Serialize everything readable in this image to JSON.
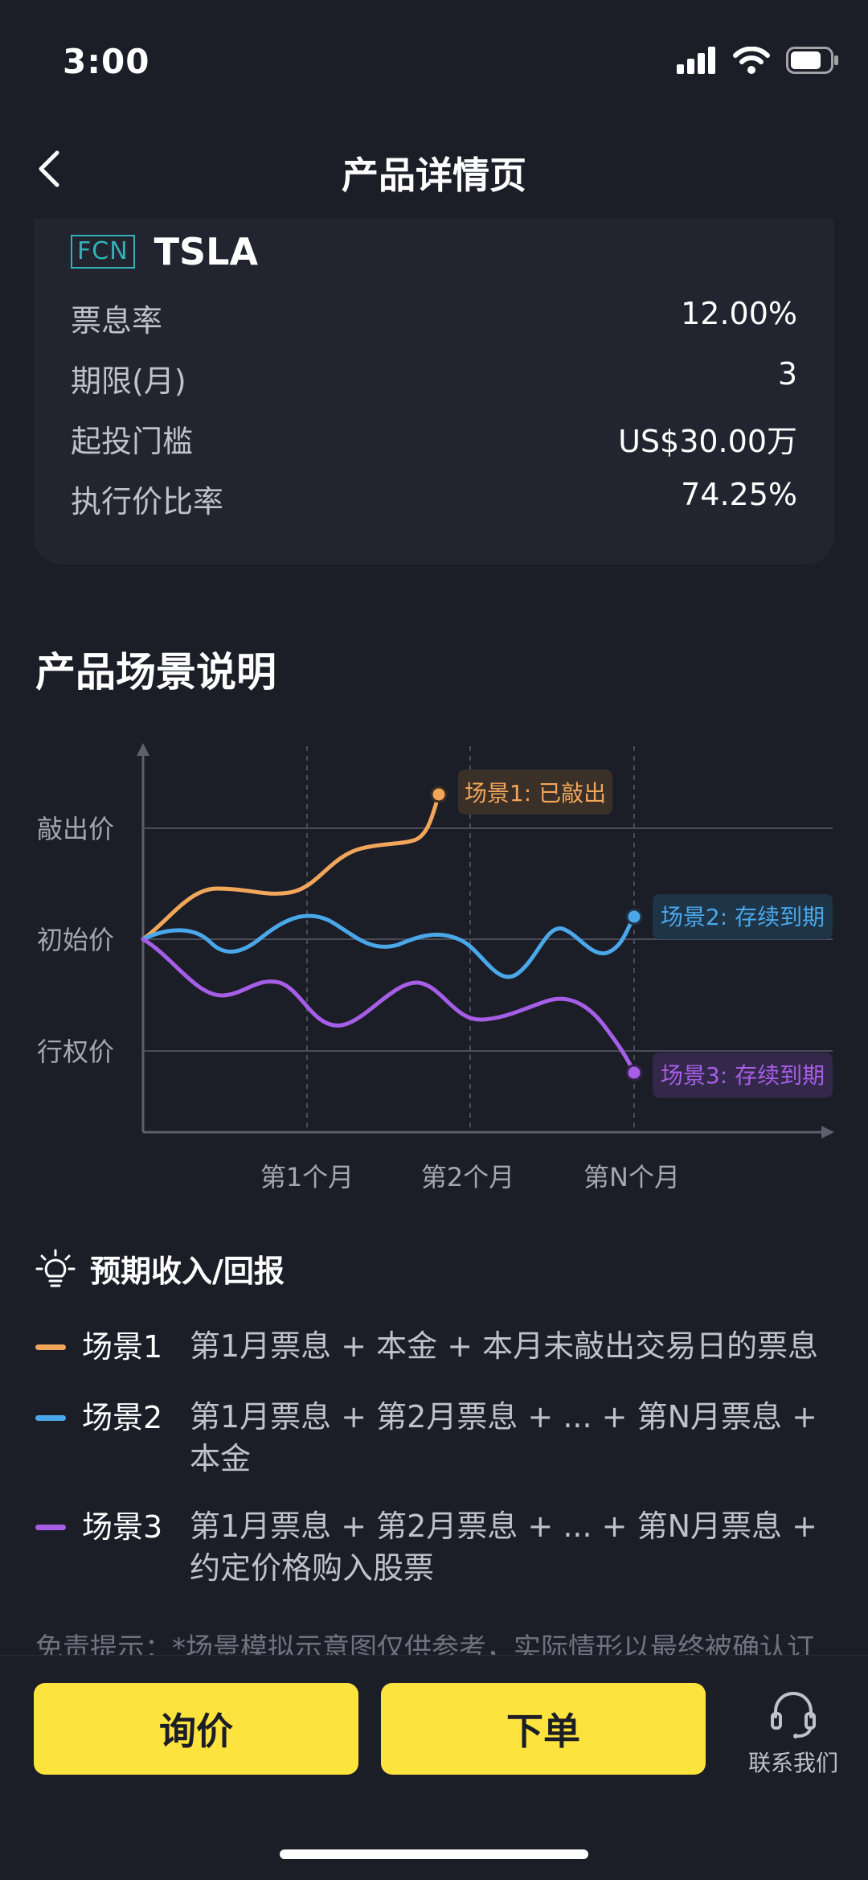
{
  "status": {
    "time": "3:00"
  },
  "nav": {
    "title": "产品详情页"
  },
  "product": {
    "tag": "FCN",
    "ticker": "TSLA",
    "rows": [
      {
        "label": "票息率",
        "value": "12.00%"
      },
      {
        "label": "期限(月)",
        "value": "3"
      },
      {
        "label": "起投门槛",
        "value": "US$30.00万"
      },
      {
        "label": "执行价比率",
        "value": "74.25%"
      }
    ]
  },
  "section": {
    "title": "产品场景说明"
  },
  "chart": {
    "y_labels": [
      "敲出价",
      "初始价",
      "行权价"
    ],
    "x_labels": [
      "第1个月",
      "第2个月",
      "第N个月"
    ],
    "callouts": [
      "场景1: 已敲出",
      "场景2: 存续到期",
      "场景3: 存续到期"
    ],
    "colors": {
      "s1": "#f2a65a",
      "s2": "#4aa8ea",
      "s3": "#a65ee6"
    }
  },
  "returns": {
    "title": "预期收入/回报",
    "items": [
      {
        "name": "场景1",
        "desc": "第1月票息 + 本金 + 本月未敲出交易日的票息",
        "color": "#f2a65a"
      },
      {
        "name": "场景2",
        "desc": "第1月票息 + 第2月票息 + ... + 第N月票息 + 本金",
        "color": "#4aa8ea"
      },
      {
        "name": "场景3",
        "desc": "第1月票息 + 第2月票息 + ... + 第N月票息 + 约定价格购入股票",
        "color": "#a65ee6"
      }
    ]
  },
  "disclaimer": "免责提示：*场景模拟示意图仅供参考，实际情形以最终被确认订",
  "bottom": {
    "inquiry": "询价",
    "order": "下单",
    "contact": "联系我们"
  }
}
